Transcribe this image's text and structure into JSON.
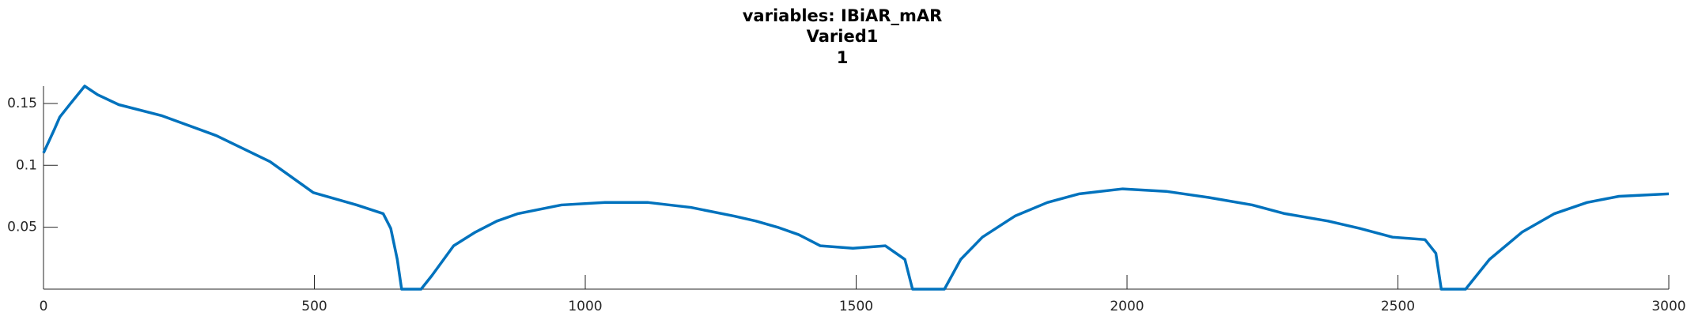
{
  "chart_data": {
    "type": "line",
    "title": "variables: IBiAR_mAR",
    "subtitle": "Varied1",
    "subtitle2": "1",
    "x": [
      0,
      20,
      30,
      50,
      76,
      100,
      139,
      219,
      319,
      418,
      498,
      578,
      627,
      641,
      653,
      661,
      697,
      717,
      757,
      797,
      837,
      876,
      956,
      1036,
      1116,
      1195,
      1275,
      1315,
      1355,
      1394,
      1434,
      1494,
      1554,
      1590,
      1604,
      1663,
      1693,
      1733,
      1793,
      1853,
      1912,
      1992,
      2072,
      2151,
      2231,
      2291,
      2371,
      2430,
      2490,
      2550,
      2570,
      2580,
      2625,
      2669,
      2729,
      2789,
      2849,
      2908,
      3000
    ],
    "series": [
      {
        "name": "IBiAR_mAR",
        "color": "#0072bd",
        "values": [
          0.11,
          0.129,
          0.139,
          0.15,
          0.164,
          0.157,
          0.149,
          0.14,
          0.124,
          0.103,
          0.078,
          0.068,
          0.061,
          0.049,
          0.024,
          0,
          0,
          0.011,
          0.035,
          0.046,
          0.055,
          0.061,
          0.068,
          0.07,
          0.07,
          0.066,
          0.059,
          0.055,
          0.05,
          0.044,
          0.035,
          0.033,
          0.035,
          0.024,
          0,
          0,
          0.024,
          0.042,
          0.059,
          0.07,
          0.077,
          0.081,
          0.079,
          0.074,
          0.068,
          0.061,
          0.055,
          0.049,
          0.042,
          0.04,
          0.029,
          0,
          0,
          0.024,
          0.046,
          0.061,
          0.07,
          0.075,
          0.077
        ]
      }
    ],
    "xlim": [
      0,
      3000
    ],
    "xticks": [
      0,
      500,
      1000,
      1500,
      2000,
      2500,
      3000
    ],
    "ylim": [
      0,
      0.164
    ],
    "yticks": [
      0.05,
      0.1,
      0.15
    ],
    "grid": false
  }
}
